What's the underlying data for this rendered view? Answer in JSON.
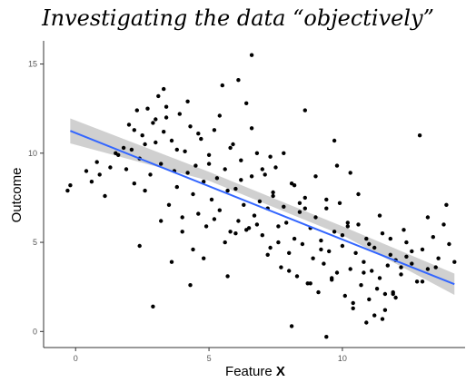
{
  "chart_data": {
    "type": "scatter",
    "title": "Investigating the data “objectively”",
    "xlabel_main": "Feature ",
    "xlabel_bold": "X",
    "ylabel": "Outcome",
    "xlim": [
      -1.2,
      14.6
    ],
    "ylim": [
      -0.9,
      16.3
    ],
    "x_ticks": [
      0,
      5,
      10
    ],
    "x_tick_labels": [
      "0",
      "5",
      "10"
    ],
    "y_ticks": [
      0,
      5,
      10,
      15
    ],
    "y_tick_labels": [
      "0",
      "5",
      "10",
      "15"
    ],
    "grid": false,
    "colors": {
      "points": "#000000",
      "fit_line": "#3366ff",
      "confidence_band": "#c8c8c8",
      "axis": "#333333"
    },
    "fit_line": {
      "x": [
        -0.2,
        14.2
      ],
      "y": [
        11.25,
        2.65
      ]
    },
    "confidence_band": {
      "x": [
        -0.2,
        5.0,
        10.0,
        14.2
      ],
      "lower": [
        10.55,
        8.45,
        5.4,
        2.05
      ],
      "upper": [
        11.95,
        8.95,
        5.9,
        3.25
      ]
    },
    "points": {
      "x": [
        -0.3,
        -0.2,
        0.4,
        0.6,
        0.8,
        0.9,
        1.1,
        1.3,
        1.5,
        1.8,
        1.9,
        2.0,
        2.1,
        2.2,
        2.3,
        2.4,
        2.5,
        2.6,
        2.7,
        2.8,
        2.9,
        3.0,
        3.1,
        3.2,
        3.3,
        3.4,
        3.5,
        3.6,
        3.7,
        3.8,
        3.9,
        4.0,
        4.1,
        4.2,
        4.3,
        4.4,
        4.5,
        4.6,
        4.7,
        4.8,
        4.9,
        5.0,
        5.1,
        5.2,
        5.3,
        5.4,
        5.5,
        5.6,
        5.7,
        5.8,
        5.9,
        6.0,
        6.1,
        6.2,
        6.3,
        6.4,
        6.5,
        6.6,
        6.7,
        6.8,
        6.9,
        7.0,
        7.1,
        7.2,
        7.3,
        7.4,
        7.5,
        7.6,
        7.7,
        7.8,
        7.9,
        8.0,
        8.1,
        8.2,
        8.3,
        8.4,
        8.5,
        8.6,
        8.7,
        8.8,
        8.9,
        9.0,
        9.1,
        9.2,
        9.3,
        9.4,
        9.5,
        9.6,
        9.7,
        9.8,
        9.9,
        10.0,
        10.1,
        10.2,
        10.3,
        10.4,
        10.5,
        10.6,
        10.7,
        10.8,
        10.9,
        11.0,
        11.1,
        11.2,
        11.3,
        11.4,
        11.5,
        11.6,
        11.7,
        11.8,
        11.9,
        12.0,
        12.2,
        12.4,
        12.6,
        12.8,
        13.0,
        13.2,
        13.4,
        13.6,
        13.8,
        14.0,
        14.2,
        2.2,
        2.6,
        3.0,
        3.4,
        3.8,
        4.2,
        4.6,
        5.0,
        5.4,
        5.8,
        6.2,
        6.6,
        7.0,
        7.4,
        7.8,
        8.2,
        8.6,
        9.0,
        9.4,
        9.8,
        10.2,
        10.6,
        11.0,
        11.4,
        11.8,
        12.2,
        12.6,
        3.2,
        4.0,
        4.8,
        5.6,
        6.4,
        7.2,
        8.0,
        8.8,
        9.6,
        10.4,
        11.2,
        12.0,
        2.4,
        3.6,
        4.4,
        5.2,
        6.0,
        6.8,
        7.6,
        8.4,
        9.2,
        10.0,
        10.8,
        11.6,
        12.4,
        13.0,
        13.5,
        6.6,
        6.1,
        3.3,
        8.1,
        9.4,
        10.9,
        11.5,
        12.9,
        8.6,
        7.3,
        5.7,
        4.3,
        2.9,
        1.6,
        9.7,
        10.3,
        11.9,
        12.3,
        13.2,
        13.9
      ],
      "y": [
        7.9,
        8.2,
        9.0,
        8.4,
        9.5,
        8.8,
        7.6,
        9.2,
        10.0,
        10.3,
        9.1,
        11.6,
        10.2,
        8.3,
        12.4,
        9.7,
        11.0,
        7.9,
        12.5,
        8.8,
        11.7,
        10.6,
        13.2,
        9.4,
        11.2,
        12.0,
        7.1,
        10.7,
        9.0,
        8.1,
        12.2,
        6.4,
        10.1,
        8.9,
        11.5,
        7.7,
        9.3,
        6.6,
        10.8,
        8.4,
        5.9,
        9.9,
        7.4,
        11.3,
        8.6,
        6.8,
        13.8,
        9.1,
        7.9,
        5.6,
        10.5,
        8.0,
        6.2,
        9.6,
        7.1,
        12.8,
        5.8,
        8.7,
        6.5,
        10.0,
        7.3,
        5.4,
        8.8,
        6.9,
        4.7,
        7.6,
        9.2,
        5.9,
        3.6,
        7.0,
        6.1,
        4.4,
        8.3,
        5.2,
        3.1,
        6.7,
        4.9,
        7.5,
        2.7,
        5.8,
        4.1,
        6.4,
        2.2,
        5.1,
        3.8,
        6.9,
        4.5,
        2.9,
        5.6,
        3.3,
        7.2,
        4.8,
        2.0,
        5.9,
        3.5,
        1.6,
        4.4,
        6.0,
        2.6,
        3.9,
        5.2,
        1.8,
        3.4,
        4.7,
        2.4,
        3.0,
        5.5,
        1.2,
        3.7,
        4.3,
        2.2,
        4.0,
        3.2,
        5.0,
        3.8,
        2.8,
        4.6,
        3.5,
        5.3,
        4.1,
        6.0,
        4.9,
        3.9,
        11.3,
        10.5,
        11.9,
        12.6,
        10.2,
        12.9,
        11.1,
        9.4,
        12.1,
        10.3,
        8.5,
        11.4,
        9.1,
        7.8,
        10.0,
        8.2,
        6.9,
        8.7,
        7.4,
        9.3,
        6.1,
        7.7,
        4.9,
        6.5,
        5.2,
        3.6,
        4.5,
        6.2,
        5.6,
        4.1,
        5.0,
        5.7,
        4.3,
        3.4,
        2.7,
        3.0,
        1.3,
        0.9,
        1.9,
        4.8,
        3.9,
        4.6,
        6.3,
        5.5,
        6.0,
        5.0,
        7.2,
        4.6,
        5.4,
        3.3,
        2.1,
        4.2,
        2.8,
        3.6,
        15.5,
        14.1,
        13.6,
        0.3,
        -0.3,
        0.5,
        0.7,
        11.0,
        12.4,
        9.8,
        3.1,
        2.6,
        1.4,
        9.9,
        10.7,
        8.9,
        2.1,
        5.7,
        6.4,
        7.1
      ],
      "count_note": ""
    }
  }
}
